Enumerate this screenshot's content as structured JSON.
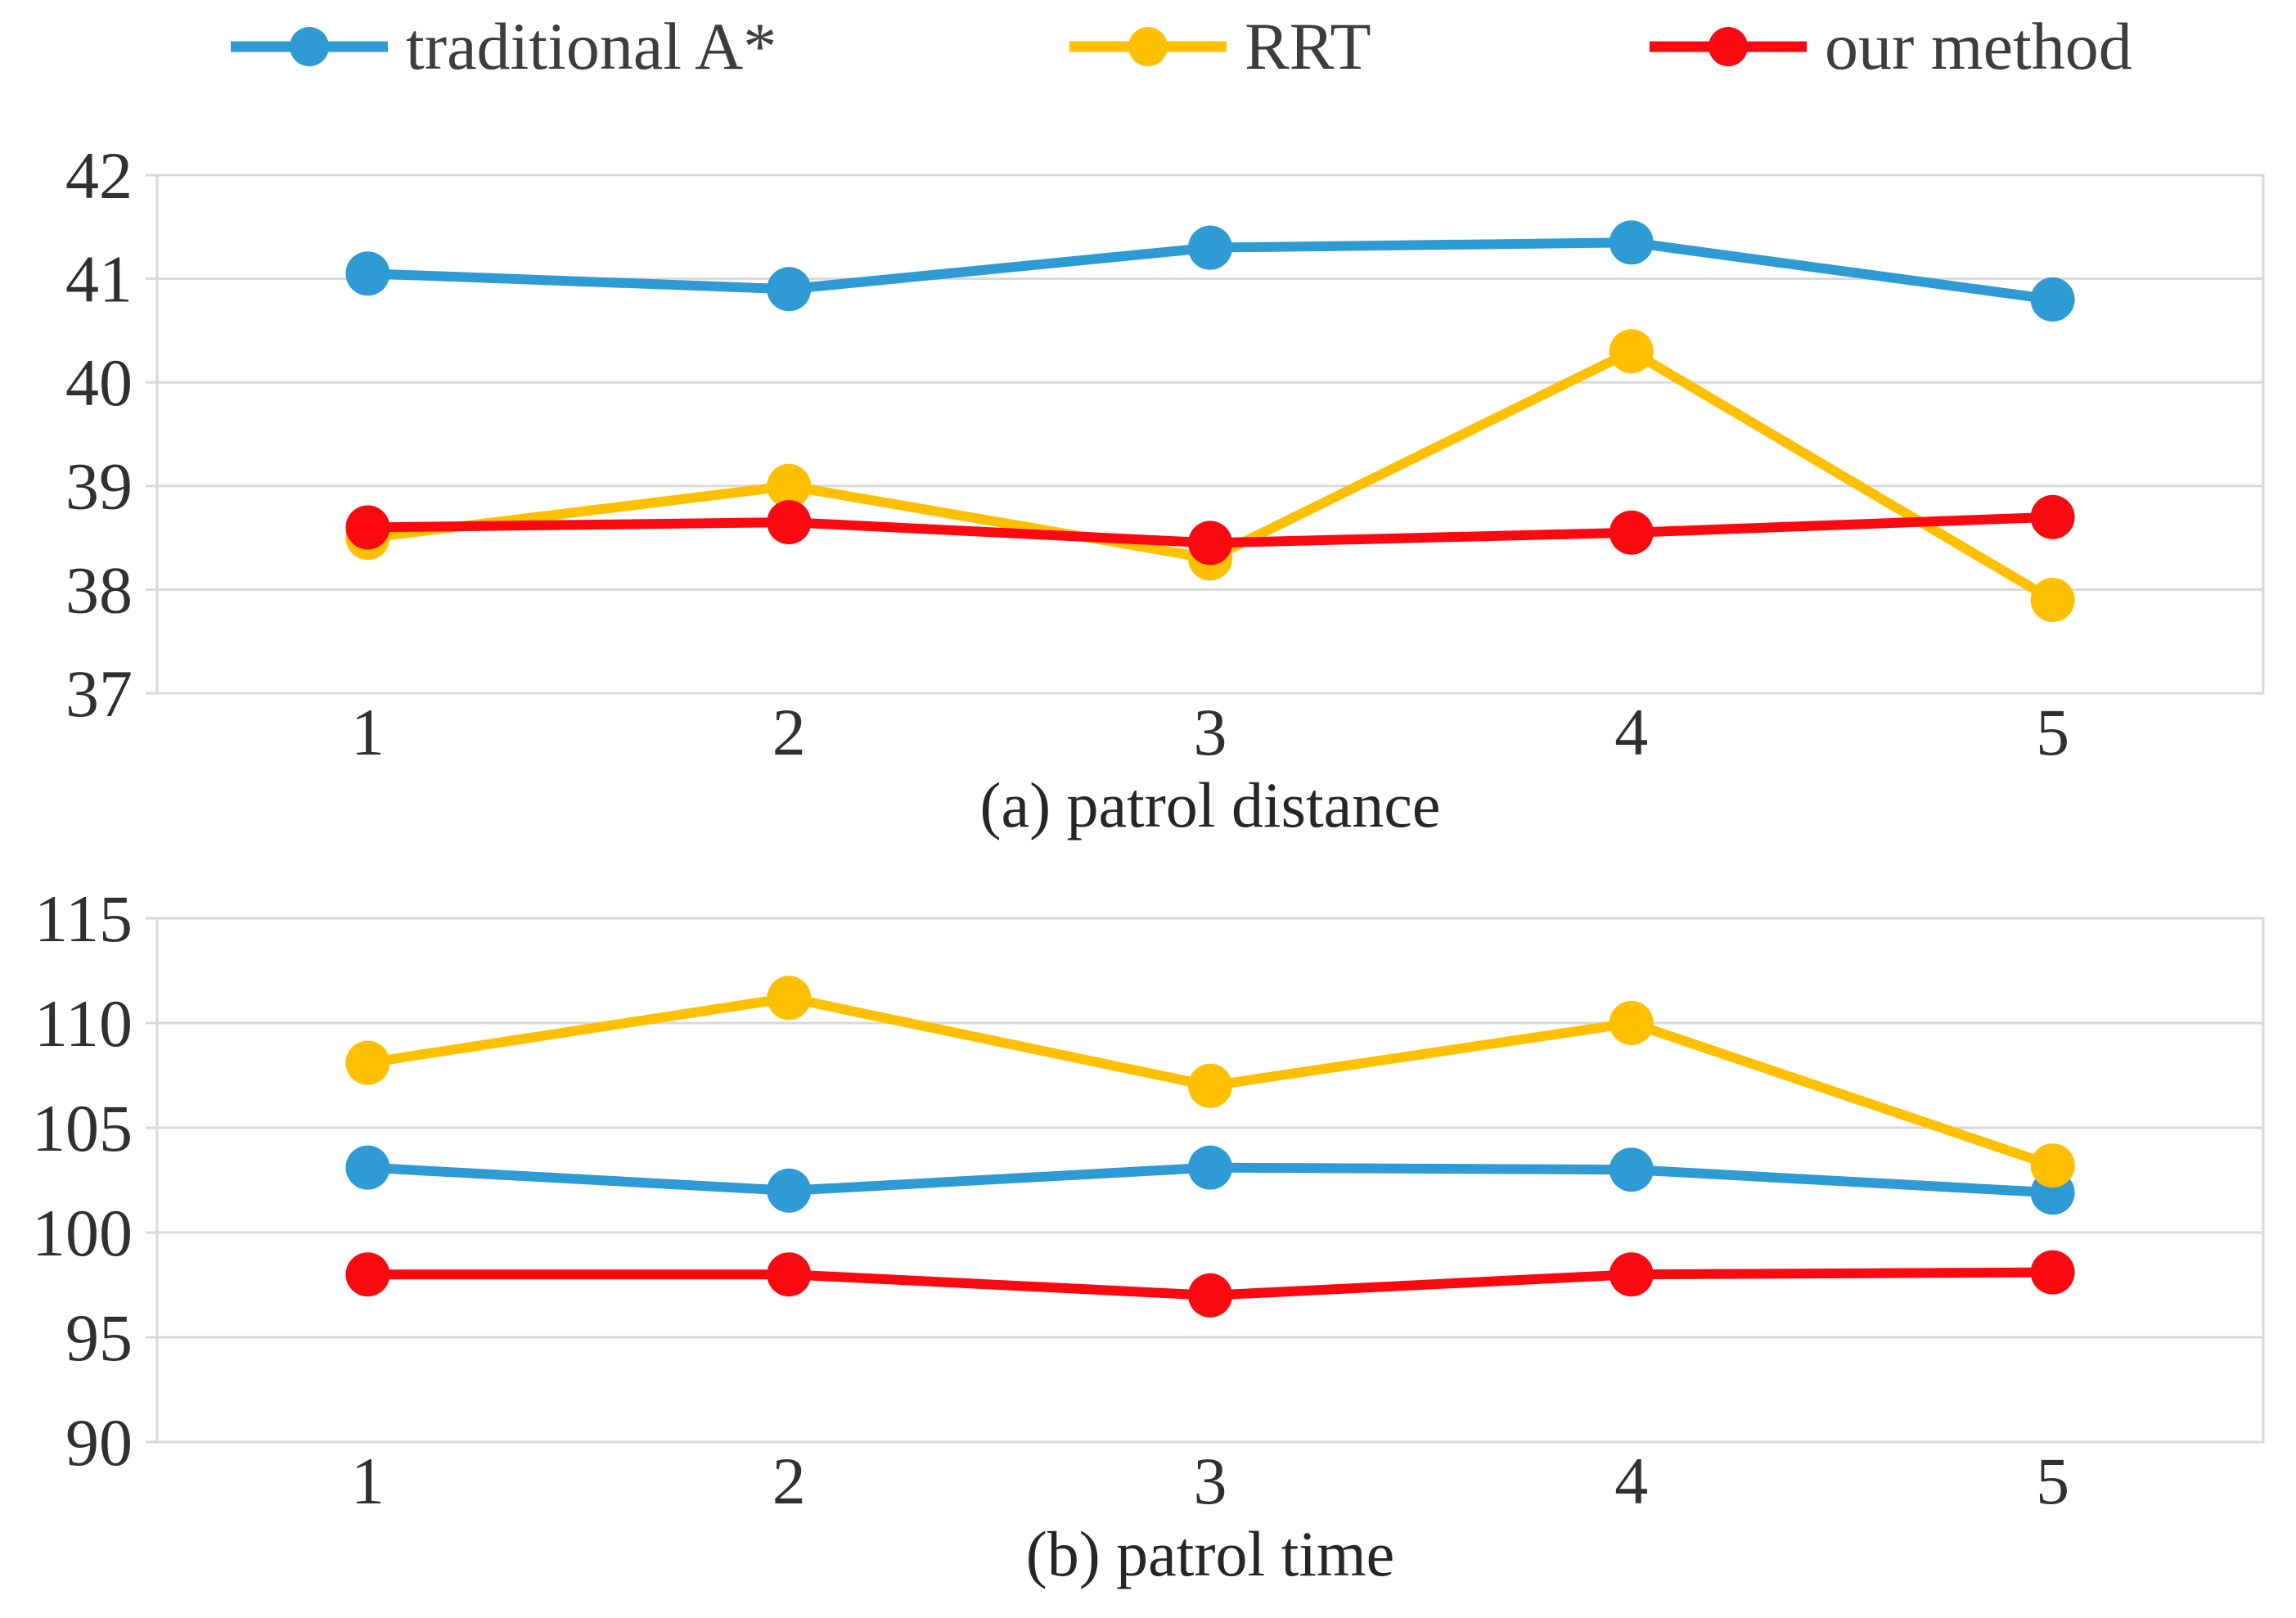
{
  "figure": {
    "legend": {
      "items": [
        {
          "id": "traditional-a-star",
          "label": "traditional A*",
          "color": "#2E9BD5",
          "marker": "circle-icon"
        },
        {
          "id": "rrt",
          "label": "RRT",
          "color": "#FFC000",
          "marker": "circle-icon"
        },
        {
          "id": "our-method",
          "label": "our method",
          "color": "#FA0A10",
          "marker": "circle-icon"
        }
      ],
      "position": "top"
    },
    "grid_color": "#D9D9D9",
    "tick_text_color": "#303030",
    "caption_text_color": "#262626",
    "background_color": "#FFFFFF"
  },
  "chart_data": [
    {
      "type": "line",
      "caption": "(a) patrol distance",
      "x": [
        1,
        2,
        3,
        4,
        5
      ],
      "xlabel": "",
      "ylabel": "",
      "ylim": [
        37,
        42
      ],
      "yticks": [
        42,
        41,
        40,
        39,
        38,
        37
      ],
      "grid": true,
      "legend_position": "top",
      "series": [
        {
          "name": "traditional A*",
          "color": "#2E9BD5",
          "values": [
            41.05,
            40.9,
            41.3,
            41.35,
            40.8
          ]
        },
        {
          "name": "RRT",
          "color": "#FFC000",
          "values": [
            38.5,
            39.0,
            38.3,
            40.3,
            37.9
          ]
        },
        {
          "name": "our method",
          "color": "#FA0A10",
          "values": [
            38.6,
            38.65,
            38.45,
            38.55,
            38.7
          ]
        }
      ]
    },
    {
      "type": "line",
      "caption": "(b) patrol time",
      "x": [
        1,
        2,
        3,
        4,
        5
      ],
      "xlabel": "",
      "ylabel": "",
      "ylim": [
        90,
        115
      ],
      "yticks": [
        115,
        110,
        105,
        100,
        95,
        90
      ],
      "grid": true,
      "legend_position": "top",
      "series": [
        {
          "name": "traditional A*",
          "color": "#2E9BD5",
          "values": [
            103.1,
            102.0,
            103.1,
            103.0,
            101.9
          ]
        },
        {
          "name": "RRT",
          "color": "#FFC000",
          "values": [
            108.1,
            111.2,
            107.0,
            110.0,
            103.2
          ]
        },
        {
          "name": "our method",
          "color": "#FA0A10",
          "values": [
            98.0,
            98.0,
            97.0,
            98.0,
            98.1
          ]
        }
      ]
    }
  ]
}
